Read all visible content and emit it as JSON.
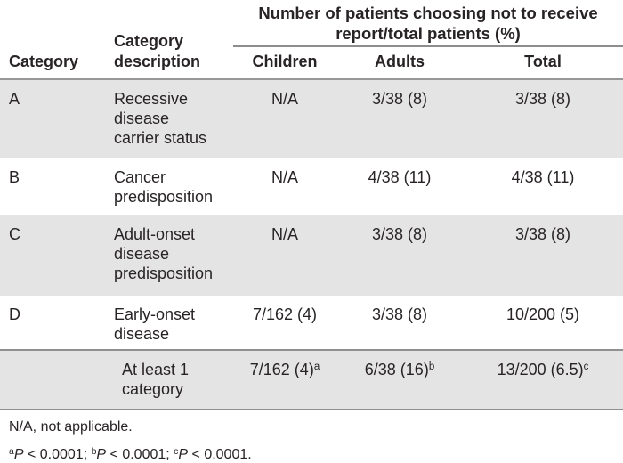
{
  "colors": {
    "text": "#282425",
    "shade": "#e5e4e4",
    "rule": "#979797"
  },
  "table": {
    "headers": {
      "category": "Category",
      "description": "Category description",
      "span_group": "Number of patients choosing not to receive report/total patients (%)",
      "children": "Children",
      "adults": "Adults",
      "total": "Total"
    },
    "rows": [
      {
        "category": "A",
        "description": "Recessive disease carrier status",
        "children": "N/A",
        "adults": "3/38 (8)",
        "total": "3/38 (8)"
      },
      {
        "category": "B",
        "description": "Cancer predisposition",
        "children": "N/A",
        "adults": "4/38 (11)",
        "total": "4/38 (11)"
      },
      {
        "category": "C",
        "description": "Adult-onset disease predisposition",
        "children": "N/A",
        "adults": "3/38 (8)",
        "total": "3/38 (8)"
      },
      {
        "category": "D",
        "description": "Early-onset disease",
        "children": "7/162 (4)",
        "adults": "3/38 (8)",
        "total": "10/200 (5)"
      }
    ],
    "summary_row": {
      "category": "",
      "description": "At least 1 category",
      "children": {
        "value": "7/162 (4)",
        "sup": "a"
      },
      "adults": {
        "value": "6/38 (16)",
        "sup": "b"
      },
      "total": {
        "value": "13/200 (6.5)",
        "sup": "c"
      }
    }
  },
  "footnotes": {
    "abbreviation": "N/A, not applicable.",
    "stats": [
      {
        "sup": "a",
        "p": "P",
        "rest": " < 0.0001; "
      },
      {
        "sup": "b",
        "p": "P",
        "rest": " < 0.0001; "
      },
      {
        "sup": "c",
        "p": "P",
        "rest": " < 0.0001."
      }
    ]
  }
}
